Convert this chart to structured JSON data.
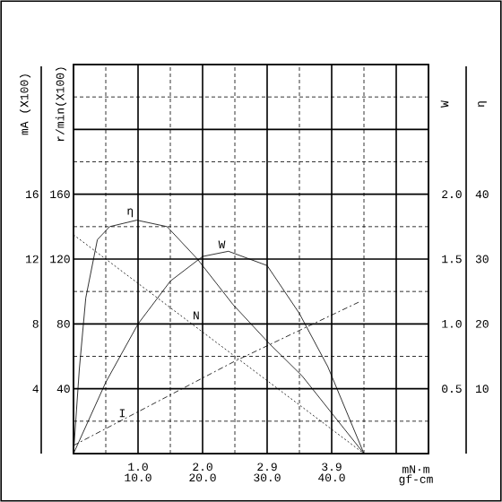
{
  "chart_data": [
    {
      "type": "line",
      "xlabel": "gf-cm",
      "x2label": "mN·m",
      "ylabel": "r/min(X100)",
      "y2label": "W",
      "xlim": [
        0,
        55
      ],
      "xticks": [
        {
          "value": 10,
          "label": "10.0"
        },
        {
          "value": 20,
          "label": "20.0"
        },
        {
          "value": 30,
          "label": "30.0"
        },
        {
          "value": 40,
          "label": "40.0"
        },
        {
          "value": 50,
          "label": null
        }
      ],
      "x2lim": [
        0,
        5.39
      ],
      "x2ticks": [
        {
          "value": 0.98,
          "label": "1.0"
        },
        {
          "value": 1.96,
          "label": "2.0"
        },
        {
          "value": 2.94,
          "label": "2.9"
        },
        {
          "value": 3.92,
          "label": "3.9"
        }
      ],
      "ylim": [
        0,
        240
      ],
      "yticks": [
        40,
        80,
        120,
        160,
        {
          "value": 200,
          "label": null
        }
      ],
      "y2lim": [
        0,
        3
      ],
      "y2ticks": [
        {
          "value": 0.5,
          "label": "0.5"
        },
        {
          "value": 1,
          "label": "1.0"
        },
        {
          "value": 1.5,
          "label": "1.5"
        },
        {
          "value": 2,
          "label": "2.0"
        }
      ],
      "grid": true,
      "marker": "none",
      "series": [
        {
          "name": "N",
          "color": "#000000",
          "line_style": "dotted",
          "x": [
            0,
            45
          ],
          "values": [
            135,
            0
          ]
        },
        {
          "name": "W",
          "color": "#000000",
          "axis": "y2",
          "line_style": "solid",
          "x": [
            0,
            5,
            10,
            15,
            20,
            24,
            30,
            35,
            39.4,
            45
          ],
          "values": [
            0,
            0.55,
            1.0,
            1.33,
            1.52,
            1.56,
            1.45,
            1.08,
            0.67,
            0
          ]
        }
      ]
    },
    {
      "type": "line",
      "tick_labels": "y",
      "ylabel": "mA (X100)",
      "y2label": "η",
      "xlim": [
        0,
        55
      ],
      "ylim": [
        0,
        24
      ],
      "yticks": [
        4,
        8,
        12,
        16
      ],
      "y2lim": [
        0,
        60
      ],
      "y2ticks": [
        10,
        20,
        30,
        40
      ],
      "marker": "none",
      "series": [
        {
          "name": "η",
          "color": "#000000",
          "axis": "y2",
          "line_style": "solid",
          "x": [
            0,
            0.9,
            1.9,
            3.7,
            5.6,
            9.8,
            14.5,
            19.2,
            24.7,
            30.3,
            35.4,
            45
          ],
          "values": [
            0,
            13,
            24,
            33,
            35,
            36,
            35,
            30,
            23,
            17,
            12,
            0
          ]
        },
        {
          "name": "I",
          "color": "#000000",
          "line_style": "dashed",
          "x": [
            0,
            25,
            44.5
          ],
          "values": [
            0.5,
            5.7,
            9.4
          ]
        }
      ]
    }
  ]
}
